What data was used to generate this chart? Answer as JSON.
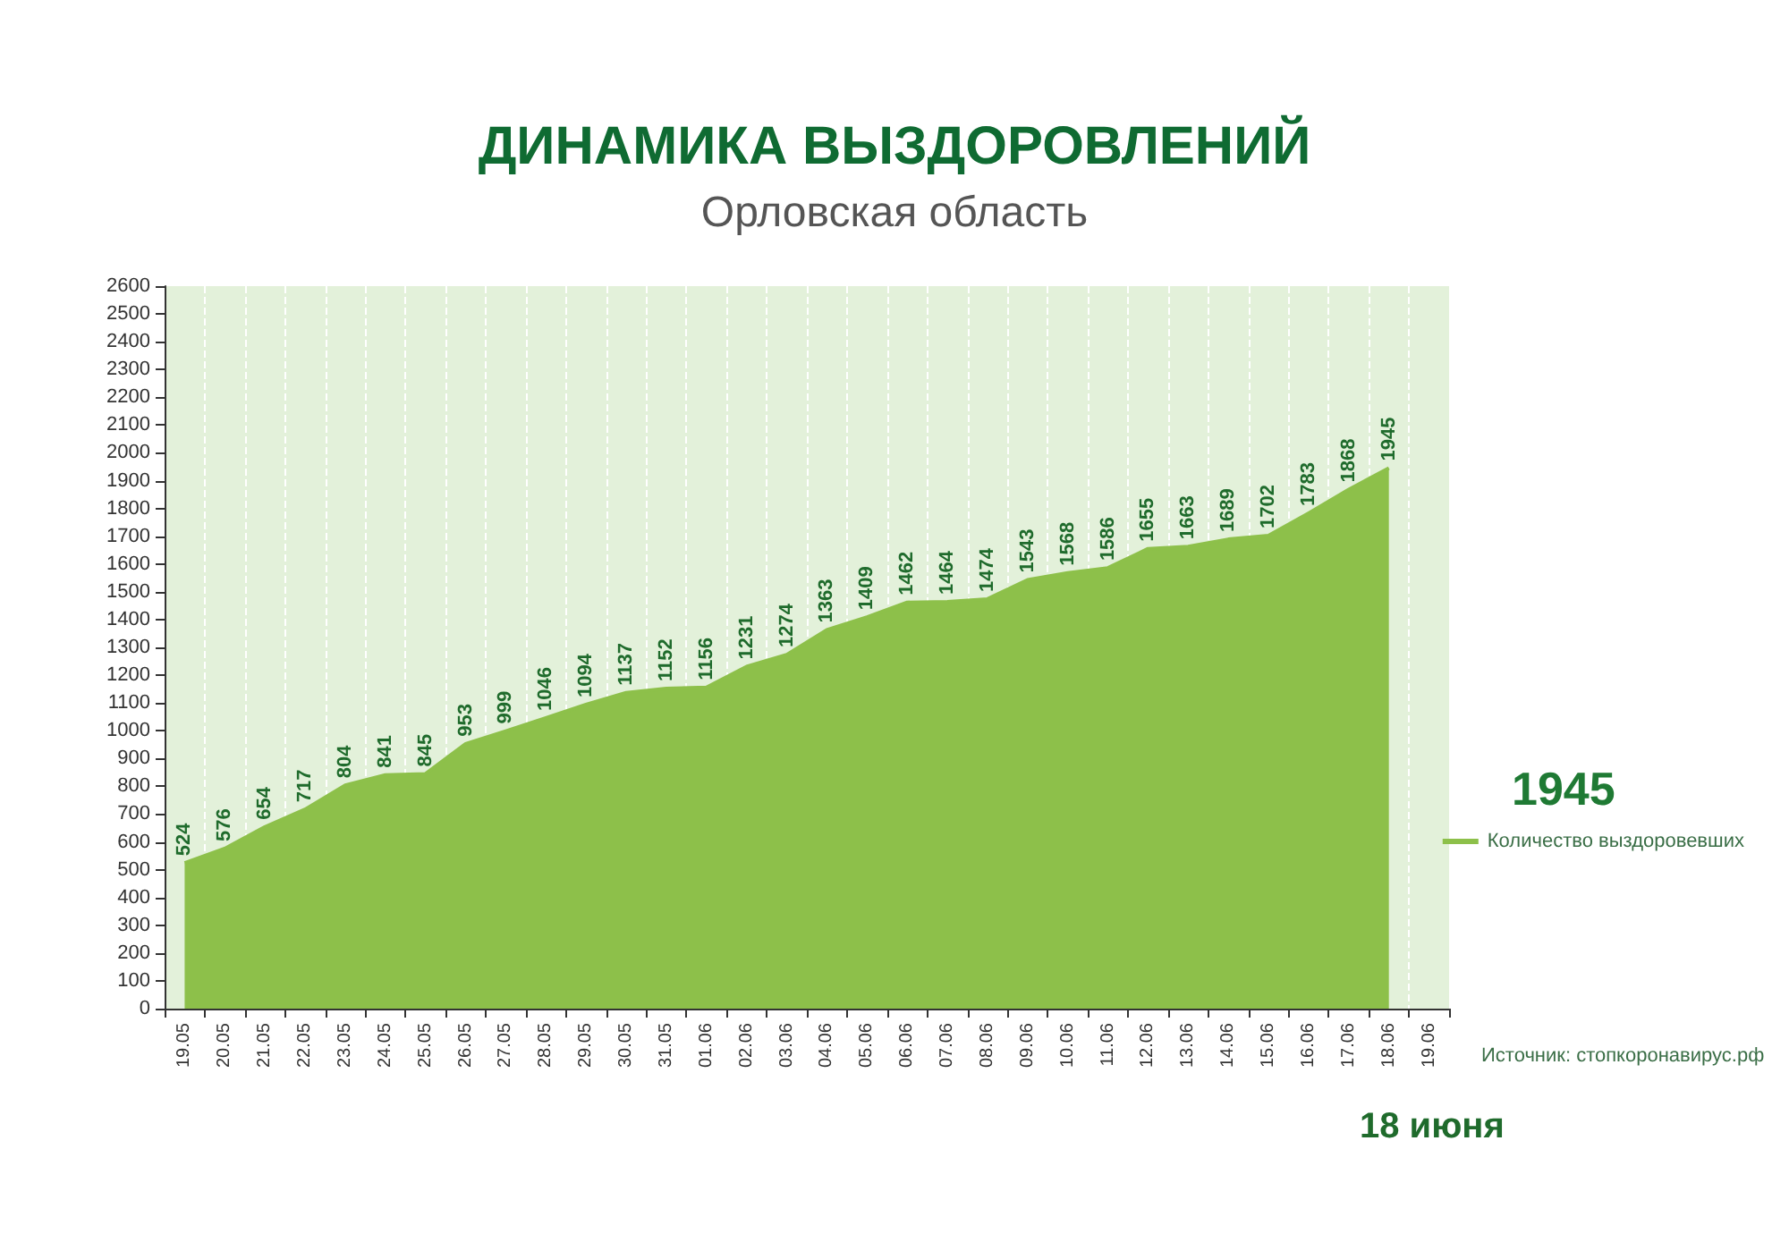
{
  "chart_data": {
    "type": "area",
    "title": "ДИНАМИКА ВЫЗДОРОВЛЕНИЙ",
    "subtitle": "Орловская область",
    "categories": [
      "19.05",
      "20.05",
      "21.05",
      "22.05",
      "23.05",
      "24.05",
      "25.05",
      "26.05",
      "27.05",
      "28.05",
      "29.05",
      "30.05",
      "31.05",
      "01.06",
      "02.06",
      "03.06",
      "04.06",
      "05.06",
      "06.06",
      "07.06",
      "08.06",
      "09.06",
      "10.06",
      "11.06",
      "12.06",
      "13.06",
      "14.06",
      "15.06",
      "16.06",
      "17.06",
      "18.06",
      "19.06"
    ],
    "series": [
      {
        "name": "Количество выздоровевших",
        "color": "#8dc04a",
        "values": [
          524,
          576,
          654,
          717,
          804,
          841,
          845,
          953,
          999,
          1046,
          1094,
          1137,
          1152,
          1156,
          1231,
          1274,
          1363,
          1409,
          1462,
          1464,
          1474,
          1543,
          1568,
          1586,
          1655,
          1663,
          1689,
          1702,
          1783,
          1868,
          1945,
          null
        ]
      }
    ],
    "ylim": [
      0,
      2600
    ],
    "yticks": [
      0,
      100,
      200,
      300,
      400,
      500,
      600,
      700,
      800,
      900,
      1000,
      1100,
      1200,
      1300,
      1400,
      1500,
      1600,
      1700,
      1800,
      1900,
      2000,
      2100,
      2200,
      2300,
      2400,
      2500,
      2600
    ],
    "grid": "x",
    "legend": "right",
    "data_labels": true,
    "annotations": [
      "1945",
      "Источник: стопкоронавирус.рф",
      "18 июня"
    ]
  }
}
